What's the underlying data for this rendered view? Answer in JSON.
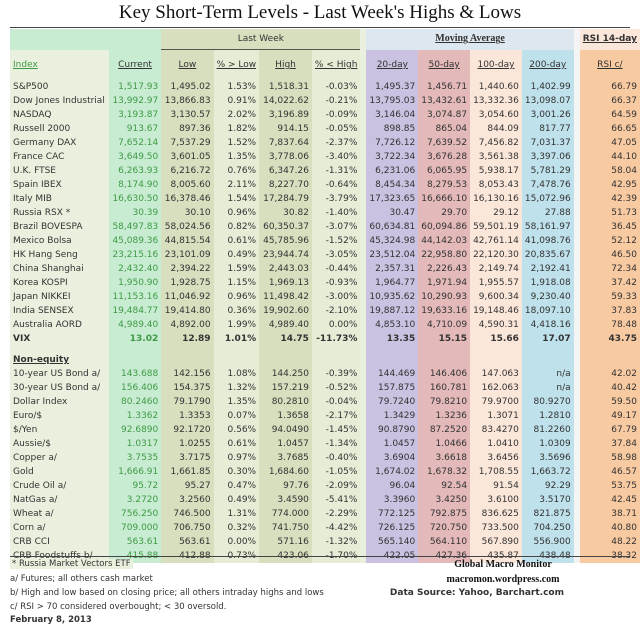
{
  "title": "Key Short-Term Levels -  Last Week's Highs & Lows",
  "groups": {
    "last_week": "Last Week",
    "moving_average": "Moving Average",
    "rsi": "RSI 14-day"
  },
  "columns": [
    "Index",
    "Current",
    "Low",
    "% > Low",
    "High",
    "% < High",
    "20-day",
    "50-day",
    "100-day",
    "200-day",
    "RSI c/"
  ],
  "equities": [
    [
      "S&P500",
      "1,517.93",
      "1,495.02",
      "1.53%",
      "1,518.31",
      "-0.03%",
      "1,495.37",
      "1,456.71",
      "1,440.60",
      "1,402.99",
      "66.79"
    ],
    [
      "Dow Jones Industrial",
      "13,992.97",
      "13,866.83",
      "0.91%",
      "14,022.62",
      "-0.21%",
      "13,795.03",
      "13,432.61",
      "13,332.36",
      "13,098.07",
      "66.37"
    ],
    [
      "NASDAQ",
      "3,193.87",
      "3,130.57",
      "2.02%",
      "3,196.89",
      "-0.09%",
      "3,146.04",
      "3,074.87",
      "3,054.60",
      "3,001.26",
      "64.59"
    ],
    [
      "Russell 2000",
      "913.67",
      "897.36",
      "1.82%",
      "914.15",
      "-0.05%",
      "898.85",
      "865.04",
      "844.09",
      "817.77",
      "66.65"
    ],
    [
      "Germany DAX",
      "7,652.14",
      "7,537.29",
      "1.52%",
      "7,837.64",
      "-2.37%",
      "7,726.12",
      "7,639.52",
      "7,456.82",
      "7,031.37",
      "47.05"
    ],
    [
      "France CAC",
      "3,649.50",
      "3,601.05",
      "1.35%",
      "3,778.06",
      "-3.40%",
      "3,722.34",
      "3,676.28",
      "3,561.38",
      "3,397.06",
      "44.10"
    ],
    [
      "U.K. FTSE",
      "6,263.93",
      "6,216.72",
      "0.76%",
      "6,347.26",
      "-1.31%",
      "6,231.06",
      "6,065.95",
      "5,938.17",
      "5,781.29",
      "58.04"
    ],
    [
      "Spain IBEX",
      "8,174.90",
      "8,005.60",
      "2.11%",
      "8,227.70",
      "-0.64%",
      "8,454.34",
      "8,279.53",
      "8,053.43",
      "7,478.76",
      "42.95"
    ],
    [
      "Italy  MIB",
      "16,630.50",
      "16,378.46",
      "1.54%",
      "17,284.79",
      "-3.79%",
      "17,323.65",
      "16,666.10",
      "16,130.16",
      "15,072.96",
      "42.39"
    ],
    [
      "Russia RSX *",
      "30.39",
      "30.10",
      "0.96%",
      "30.82",
      "-1.40%",
      "30.47",
      "29.70",
      "29.12",
      "27.88",
      "51.73"
    ],
    [
      "Brazil BOVESPA",
      "58,497.83",
      "58,024.56",
      "0.82%",
      "60,350.37",
      "-3.07%",
      "60,634.81",
      "60,094.86",
      "59,501.19",
      "58,161.97",
      "36.45"
    ],
    [
      "Mexico Bolsa",
      "45,089.36",
      "44,815.54",
      "0.61%",
      "45,785.96",
      "-1.52%",
      "45,324.98",
      "44,142.03",
      "42,761.14",
      "41,098.76",
      "52.12"
    ],
    [
      "HK  Hang Seng",
      "23,215.16",
      "23,101.09",
      "0.49%",
      "23,944.74",
      "-3.05%",
      "23,512.04",
      "22,958.80",
      "22,120.30",
      "20,835.67",
      "46.50"
    ],
    [
      "China Shanghai",
      "2,432.40",
      "2,394.22",
      "1.59%",
      "2,443.03",
      "-0.44%",
      "2,357.31",
      "2,226.43",
      "2,149.74",
      "2,192.41",
      "72.34"
    ],
    [
      "Korea KOSPI",
      "1,950.90",
      "1,928.75",
      "1.15%",
      "1,969.13",
      "-0.93%",
      "1,964.77",
      "1,971.94",
      "1,955.57",
      "1,918.08",
      "37.42"
    ],
    [
      "Japan NIKKEI",
      "11,153.16",
      "11,046.92",
      "0.96%",
      "11,498.42",
      "-3.00%",
      "10,935.62",
      "10,290.93",
      "9,600.34",
      "9,230.40",
      "59.33"
    ],
    [
      "India SENSEX",
      "19,484.77",
      "19,414.80",
      "0.36%",
      "19,902.60",
      "-2.10%",
      "19,887.12",
      "19,633.16",
      "19,148.46",
      "18,097.10",
      "37.83"
    ],
    [
      "Australia AORD",
      "4,989.40",
      "4,892.00",
      "1.99%",
      "4,989.40",
      "0.00%",
      "4,853.10",
      "4,710.09",
      "4,590.31",
      "4,418.16",
      "78.48"
    ],
    [
      "VIX",
      "13.02",
      "12.89",
      "1.01%",
      "14.75",
      "-11.73%",
      "13.35",
      "15.15",
      "15.66",
      "17.07",
      "43.75"
    ]
  ],
  "non_equity_label": "Non-equity",
  "non_equity": [
    [
      "10-year US Bond  a/",
      "143.688",
      "142.156",
      "1.08%",
      "144.250",
      "-0.39%",
      "144.469",
      "146.406",
      "147.063",
      "n/a",
      "42.02"
    ],
    [
      "30-year US Bond  a/",
      "156.406",
      "154.375",
      "1.32%",
      "157.219",
      "-0.52%",
      "157.875",
      "160.781",
      "162.063",
      "n/a",
      "40.42"
    ],
    [
      "Dollar Index",
      "80.2460",
      "79.1790",
      "1.35%",
      "80.2810",
      "-0.04%",
      "79.7240",
      "79.8210",
      "79.9700",
      "80.9270",
      "59.50"
    ],
    [
      "Euro/$",
      "1.3362",
      "1.3353",
      "0.07%",
      "1.3658",
      "-2.17%",
      "1.3429",
      "1.3236",
      "1.3071",
      "1.2810",
      "49.17"
    ],
    [
      "$/Yen",
      "92.6890",
      "92.1720",
      "0.56%",
      "94.0490",
      "-1.45%",
      "90.8790",
      "87.2520",
      "83.4270",
      "81.2260",
      "67.79"
    ],
    [
      "Aussie/$",
      "1.0317",
      "1.0255",
      "0.61%",
      "1.0457",
      "-1.34%",
      "1.0457",
      "1.0466",
      "1.0410",
      "1.0309",
      "37.84"
    ],
    [
      "Copper  a/",
      "3.7535",
      "3.7175",
      "0.97%",
      "3.7685",
      "-0.40%",
      "3.6904",
      "3.6618",
      "3.6456",
      "3.5696",
      "58.98"
    ],
    [
      "Gold",
      "1,666.91",
      "1,661.85",
      "0.30%",
      "1,684.60",
      "-1.05%",
      "1,674.02",
      "1,678.32",
      "1,708.55",
      "1,663.72",
      "46.57"
    ],
    [
      "Crude Oil  a/",
      "95.72",
      "95.27",
      "0.47%",
      "97.76",
      "-2.09%",
      "96.04",
      "92.54",
      "91.54",
      "92.29",
      "53.75"
    ],
    [
      "NatGas  a/",
      "3.2720",
      "3.2560",
      "0.49%",
      "3.4590",
      "-5.41%",
      "3.3960",
      "3.4250",
      "3.6100",
      "3.5170",
      "42.45"
    ],
    [
      "Wheat  a/",
      "756.250",
      "746.500",
      "1.31%",
      "774.000",
      "-2.29%",
      "772.125",
      "792.875",
      "836.625",
      "821.875",
      "38.71"
    ],
    [
      "Corn  a/",
      "709.000",
      "706.750",
      "0.32%",
      "741.750",
      "-4.42%",
      "726.125",
      "720.750",
      "733.500",
      "704.250",
      "40.80"
    ],
    [
      "CRB CCI",
      "563.61",
      "563.61",
      "0.00%",
      "571.16",
      "-1.32%",
      "565.140",
      "564.110",
      "567.890",
      "556.900",
      "48.22"
    ],
    [
      "CRB Foodstuffs  b/",
      "415.88",
      "412.88",
      "0.73%",
      "423.06",
      "-1.70%",
      "422.05",
      "427.36",
      "435.87",
      "438.48",
      "38.32"
    ]
  ],
  "footnotes": {
    "star": "* Russia Market Vectors ETF",
    "a": "a/  Futures; all others cash market",
    "b": "b/  High and low based on closing price;  all others intraday highs and lows",
    "c": "c/  RSI > 70 considered overbought;  < 30 oversold.",
    "date": "February 8, 2013"
  },
  "brand": {
    "name": "Global Macro Monitor",
    "site": "macromon.wordpress.com",
    "source": "Data Source: Yahoo, Barchart.com"
  },
  "colors": {
    "current_text": "#3f9a45",
    "ma20": "#cbc1e1",
    "ma50": "#e3b9b9",
    "ma100": "#fbe7da",
    "ma200": "#bfe1eb",
    "rsi": "#f8caa2"
  }
}
